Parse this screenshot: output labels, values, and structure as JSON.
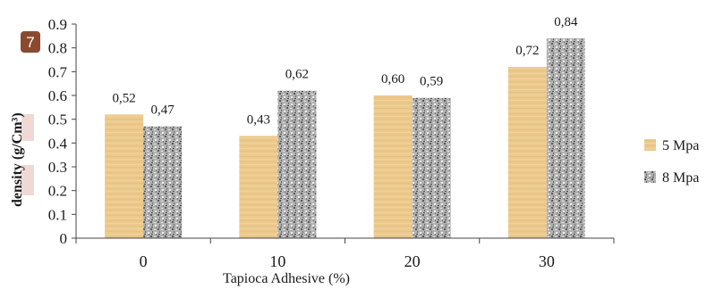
{
  "chart_data": {
    "type": "bar",
    "categories": [
      "0",
      "10",
      "20",
      "30"
    ],
    "series": [
      {
        "name": "5 Mpa",
        "values": [
          0.52,
          0.43,
          0.6,
          0.72
        ],
        "labels": [
          "0,52",
          "0,43",
          "0,60",
          "0,72"
        ],
        "color": "#ecc98c"
      },
      {
        "name": "8 Mpa",
        "values": [
          0.47,
          0.62,
          0.59,
          0.84
        ],
        "labels": [
          "0,47",
          "0,62",
          "0,59",
          "0,84"
        ],
        "color": "#a9a9a9"
      }
    ],
    "yticks": [
      "0",
      "0.1",
      "0.2",
      "0.3",
      "0.4",
      "0.5",
      "0.6",
      "0.7",
      "0.8",
      "0.9"
    ],
    "ylim": [
      0,
      0.9
    ],
    "xlabel": "Tapioca Adhesive (%)",
    "ylabel": "density (g/Cm³)",
    "legend_position": "right",
    "grid": false
  },
  "page_badge": "7"
}
